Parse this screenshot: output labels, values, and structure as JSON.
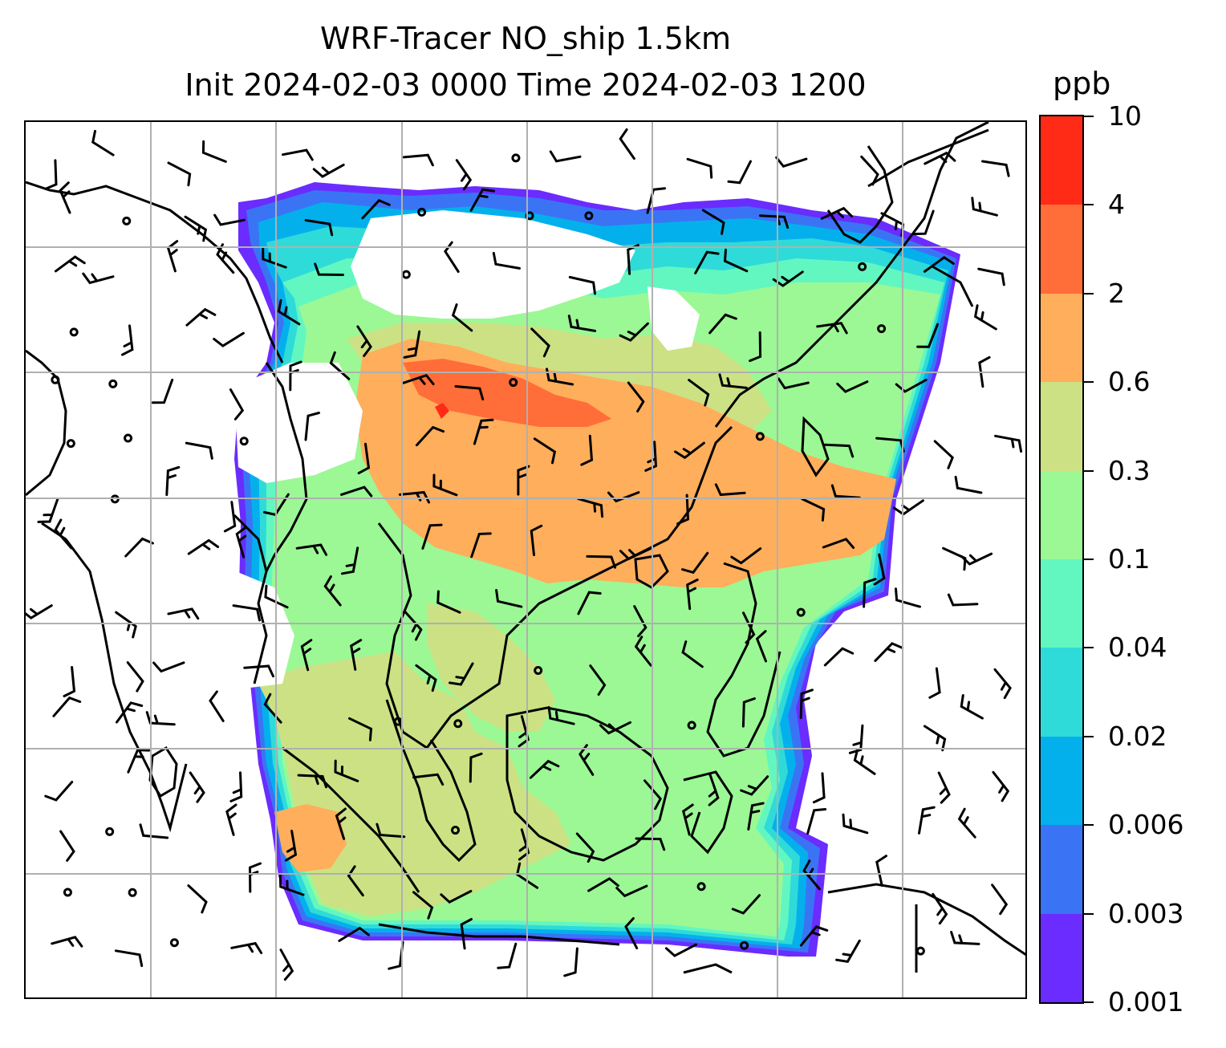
{
  "title": {
    "line1": "WRF-Tracer NO_ship 1.5km",
    "line2": "Init 2024-02-03 0000 Time 2024-02-03 1200"
  },
  "colorbar": {
    "unit": "ppb",
    "ticks": [
      "0.001",
      "0.003",
      "0.006",
      "0.02",
      "0.04",
      "0.1",
      "0.3",
      "0.6",
      "2",
      "4",
      "10"
    ],
    "colors": [
      "#6a2cff",
      "#3a74f5",
      "#04b0ec",
      "#2fdbd8",
      "#62f7c0",
      "#9bf895",
      "#cce184",
      "#ffae5c",
      "#ff6d38",
      "#ff2b17"
    ]
  },
  "map": {
    "land_color": "#ffffff",
    "coast_color": "#000000",
    "grid_color": "#b0b0b0"
  }
}
